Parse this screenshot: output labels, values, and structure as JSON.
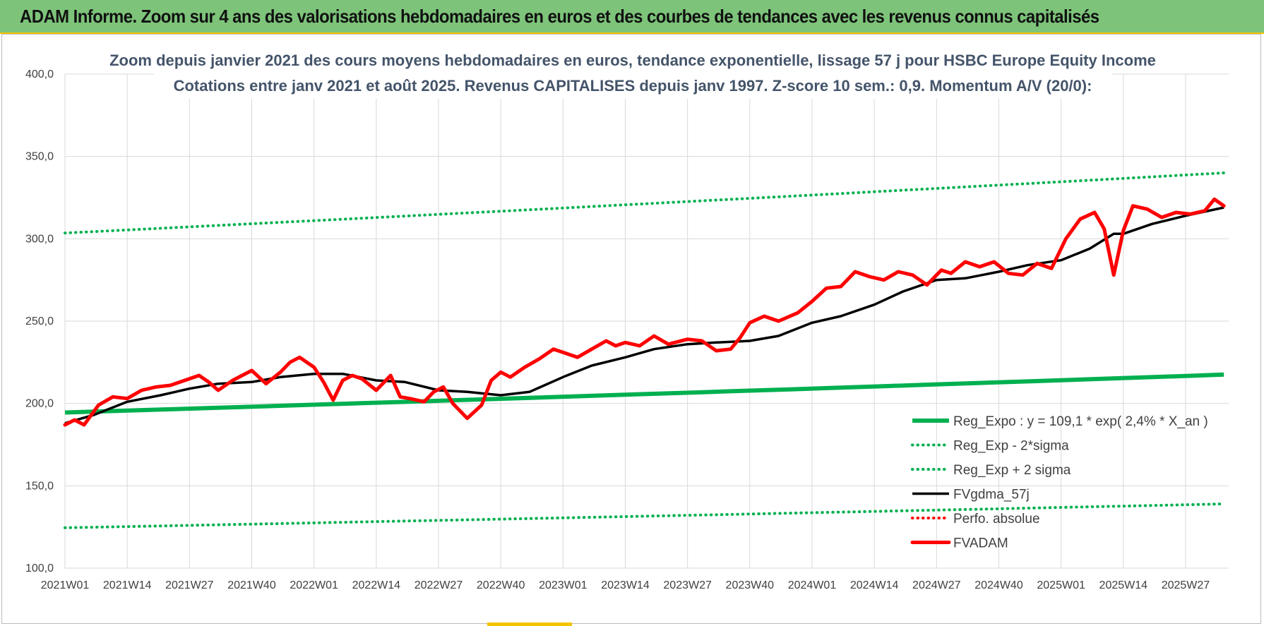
{
  "banner": {
    "title": "ADAM Informe. Zoom sur 4 ans des valorisations hebdomadaires en euros et des courbes de tendances avec les revenus connus capitalisés"
  },
  "chart_data": {
    "type": "line",
    "title": "Zoom depuis janvier 2021 des cours moyens hebdomadaires en euros, tendance exponentielle, lissage 57 j pour HSBC Europe Equity Income",
    "subtitle": "Cotations entre janv 2021 et août 2025.  Revenus CAPITALISES depuis janv 1997. Z-score 10 sem.: 0,9. Momentum A/V (20/0):",
    "xlabel": "",
    "ylabel": "",
    "ylim": [
      100,
      400
    ],
    "yticks": [
      "100,0",
      "150,0",
      "200,0",
      "250,0",
      "300,0",
      "350,0",
      "400,0"
    ],
    "xticks": [
      "2021W01",
      "2021W14",
      "2021W27",
      "2021W40",
      "2022W01",
      "2022W14",
      "2022W27",
      "2022W40",
      "2023W01",
      "2023W14",
      "2023W27",
      "2023W40",
      "2024W01",
      "2024W14",
      "2024W27",
      "2024W40",
      "2025W01",
      "2025W14",
      "2025W27"
    ],
    "grid": true,
    "legend_position": "bottom-right",
    "series": [
      {
        "name": "Reg_Expo : y = 109,1 * exp( 2,4% *  X_an )",
        "color": "#00b050",
        "style": "solid",
        "x": [
          "2021W01",
          "2025W35"
        ],
        "values": [
          194.5,
          217.5
        ]
      },
      {
        "name": "Reg_Exp - 2*sigma",
        "color": "#00b050",
        "style": "dotted",
        "x": [
          "2021W01",
          "2025W35"
        ],
        "values": [
          124.5,
          139.0
        ]
      },
      {
        "name": "Reg_Exp + 2 sigma",
        "color": "#00b050",
        "style": "dotted",
        "x": [
          "2021W01",
          "2025W35"
        ],
        "values": [
          303.5,
          340.0
        ]
      },
      {
        "name": "FVgdma_57j",
        "color": "#000000",
        "style": "solid",
        "x": [
          "2021W01",
          "2021W07",
          "2021W14",
          "2021W21",
          "2021W27",
          "2021W33",
          "2021W40",
          "2021W46",
          "2022W01",
          "2022W07",
          "2022W14",
          "2022W20",
          "2022W27",
          "2022W33",
          "2022W40",
          "2022W46",
          "2023W01",
          "2023W07",
          "2023W14",
          "2023W20",
          "2023W27",
          "2023W33",
          "2023W40",
          "2023W46",
          "2024W01",
          "2024W07",
          "2024W14",
          "2024W20",
          "2024W27",
          "2024W33",
          "2024W40",
          "2024W46",
          "2025W01",
          "2025W07",
          "2025W12",
          "2025W14",
          "2025W20",
          "2025W27",
          "2025W35"
        ],
        "values": [
          188,
          193,
          201,
          205,
          209,
          212,
          213,
          216,
          218,
          218,
          214,
          213,
          208,
          207,
          205,
          207,
          216,
          223,
          228,
          233,
          236,
          237,
          238,
          241,
          249,
          253,
          260,
          268,
          275,
          276,
          280,
          284,
          287,
          294,
          303,
          303,
          309,
          314,
          319
        ]
      },
      {
        "name": "Perfo. absolue",
        "color": "#ff0000",
        "style": "dotted",
        "x": [],
        "values": []
      },
      {
        "name": "FVADAM",
        "color": "#ff0000",
        "style": "solid",
        "x": [
          "2021W01",
          "2021W03",
          "2021W05",
          "2021W08",
          "2021W11",
          "2021W14",
          "2021W17",
          "2021W20",
          "2021W23",
          "2021W26",
          "2021W29",
          "2021W31",
          "2021W33",
          "2021W36",
          "2021W38",
          "2021W40",
          "2021W43",
          "2021W46",
          "2021W48",
          "2021W50",
          "2022W01",
          "2022W03",
          "2022W05",
          "2022W07",
          "2022W09",
          "2022W11",
          "2022W14",
          "2022W17",
          "2022W19",
          "2022W21",
          "2022W24",
          "2022W26",
          "2022W28",
          "2022W30",
          "2022W33",
          "2022W36",
          "2022W38",
          "2022W40",
          "2022W42",
          "2022W45",
          "2022W48",
          "2022W51",
          "2023W01",
          "2023W04",
          "2023W07",
          "2023W10",
          "2023W12",
          "2023W14",
          "2023W17",
          "2023W20",
          "2023W23",
          "2023W27",
          "2023W30",
          "2023W33",
          "2023W36",
          "2023W38",
          "2023W40",
          "2023W43",
          "2023W46",
          "2023W50",
          "2024W01",
          "2024W04",
          "2024W07",
          "2024W10",
          "2024W13",
          "2024W16",
          "2024W19",
          "2024W22",
          "2024W25",
          "2024W28",
          "2024W30",
          "2024W33",
          "2024W36",
          "2024W39",
          "2024W42",
          "2024W45",
          "2024W48",
          "2024W51",
          "2025W02",
          "2025W05",
          "2025W08",
          "2025W10",
          "2025W12",
          "2025W14",
          "2025W16",
          "2025W19",
          "2025W22",
          "2025W25",
          "2025W28",
          "2025W31",
          "2025W33",
          "2025W35"
        ],
        "values": [
          187,
          190,
          187,
          199,
          204,
          203,
          208,
          210,
          211,
          214,
          217,
          213,
          208,
          214,
          217,
          220,
          212,
          219,
          225,
          228,
          222,
          213,
          202,
          214,
          217,
          215,
          208,
          217,
          204,
          203,
          201,
          207,
          210,
          200,
          191,
          199,
          214,
          219,
          216,
          222,
          227,
          233,
          231,
          228,
          233,
          238,
          235,
          237,
          235,
          241,
          236,
          239,
          238,
          232,
          233,
          240,
          249,
          253,
          250,
          255,
          262,
          270,
          271,
          280,
          277,
          275,
          280,
          278,
          272,
          281,
          279,
          286,
          283,
          286,
          279,
          278,
          285,
          282,
          300,
          312,
          316,
          306,
          278,
          305,
          320,
          318,
          313,
          316,
          315,
          317,
          324,
          320
        ]
      }
    ]
  }
}
